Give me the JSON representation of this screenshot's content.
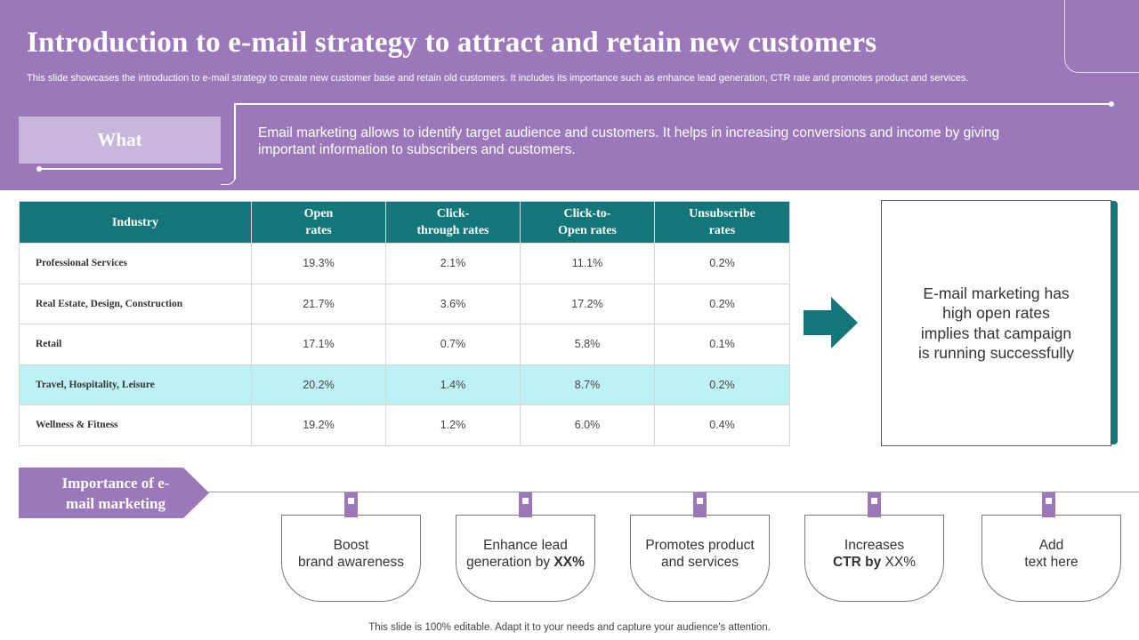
{
  "header": {
    "title": "Introduction to e-mail strategy to attract and retain new customers",
    "subtitle": "This slide showcases the introduction to e-mail strategy to create new customer base and retain old customers. It includes its importance such as enhance lead generation, CTR rate and promotes product and services."
  },
  "what": {
    "label": "What",
    "text": "Email marketing allows to identify target audience and customers. It helps in increasing conversions and income by giving important information to subscribers and customers."
  },
  "table": {
    "headers": [
      [
        "Industry"
      ],
      [
        "Open",
        "rates"
      ],
      [
        "Click-",
        "through rates"
      ],
      [
        "Click-to-",
        "Open rates"
      ],
      [
        "Unsubscribe",
        "rates"
      ]
    ],
    "rows": [
      [
        "Professional Services",
        "19.3%",
        "2.1%",
        "11.1%",
        "0.2%"
      ],
      [
        "Real Estate,  Design,  Construction",
        "21.7%",
        "3.6%",
        "17.2%",
        "0.2%"
      ],
      [
        "Retail",
        "17.1%",
        "0.7%",
        "5.8%",
        "0.1%"
      ],
      [
        "Travel,  Hospitality,  Leisure",
        "20.2%",
        "1.4%",
        "8.7%",
        "0.2%"
      ],
      [
        "Wellness &  Fitness",
        "19.2%",
        "1.2%",
        "6.0%",
        "0.4%"
      ]
    ]
  },
  "note": {
    "text": "E-mail marketing has high open rates implies that campaign is running successfully"
  },
  "importance": {
    "label_line1": "Importance of e-",
    "label_line2": "mail marketing",
    "cards": [
      {
        "line1": "Boost",
        "line2": "brand awareness"
      },
      {
        "line1": "Enhance lead",
        "line2_pre": "generation by ",
        "line2_bold": "XX%"
      },
      {
        "line1": "Promotes product",
        "line2": "and services"
      },
      {
        "line1": "Increases",
        "line2_bold": "CTR by",
        "line2_post": " XX%"
      },
      {
        "line1": "Add",
        "line2": "text here"
      }
    ]
  },
  "footer": {
    "text": "This slide is 100% editable. Adapt it to your needs and capture your audience's attention."
  },
  "colors": {
    "purple": "#9b78b9",
    "light_purple": "#c8b6dc",
    "teal": "#137779",
    "highlight": "#bdf1f4"
  }
}
